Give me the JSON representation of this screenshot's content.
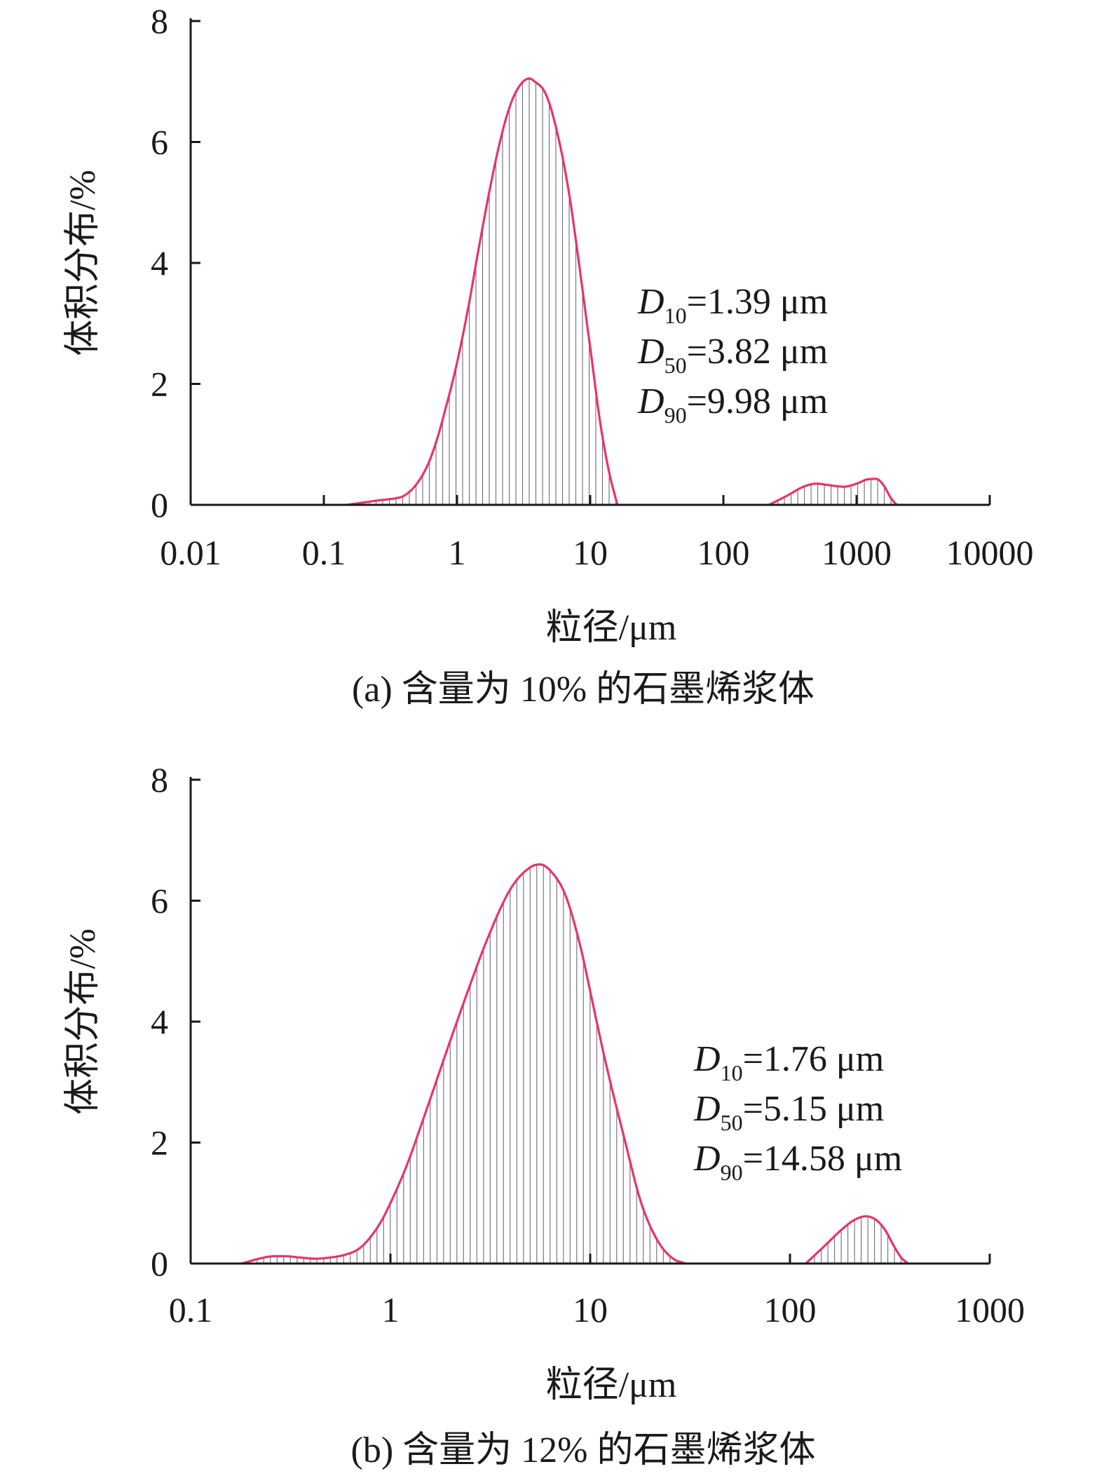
{
  "chart_data": [
    {
      "type": "area",
      "caption": "(a) 含量为 10% 的石墨烯浆体",
      "xlabel": "粒径/μm",
      "ylabel": "体积分布/%",
      "xscale": "log",
      "xlim": [
        0.01,
        10000
      ],
      "ylim": [
        0,
        8
      ],
      "x_ticks": [
        0.01,
        0.1,
        1,
        10,
        100,
        1000,
        10000
      ],
      "x_tick_labels": [
        "0.01",
        "0.1",
        "1",
        "10",
        "100",
        "1000",
        "10000"
      ],
      "y_ticks": [
        0,
        2,
        4,
        6,
        8
      ],
      "y_tick_labels": [
        "0",
        "2",
        "4",
        "6",
        "8"
      ],
      "grid": false,
      "line_color": "#e8336b",
      "hatch_color": "#555555",
      "stats": [
        {
          "symbol": "D",
          "sub": "10",
          "value": "=1.39 μm"
        },
        {
          "symbol": "D",
          "sub": "50",
          "value": "=3.82 μm"
        },
        {
          "symbol": "D",
          "sub": "90",
          "value": "=9.98 μm"
        }
      ],
      "series": [
        {
          "x": [
            0.15,
            0.2,
            0.25,
            0.3,
            0.35,
            0.4,
            0.5,
            0.6,
            0.7,
            0.8,
            1.0,
            1.2,
            1.5,
            2.0,
            2.5,
            3.0,
            3.5,
            3.82,
            4.5,
            5.0,
            6.0,
            7.0,
            8.0,
            10.0,
            12.0,
            14.0,
            16.0
          ],
          "y": [
            0.0,
            0.04,
            0.07,
            0.09,
            0.11,
            0.15,
            0.35,
            0.65,
            1.05,
            1.5,
            2.35,
            3.2,
            4.4,
            5.8,
            6.6,
            6.95,
            7.05,
            7.0,
            6.85,
            6.6,
            5.9,
            5.1,
            4.2,
            2.6,
            1.3,
            0.5,
            0.0
          ]
        },
        {
          "x": [
            220,
            300,
            400,
            500,
            600,
            800,
            1000,
            1200,
            1400,
            1600,
            1800,
            2000
          ],
          "y": [
            0.0,
            0.15,
            0.3,
            0.35,
            0.33,
            0.3,
            0.35,
            0.42,
            0.43,
            0.32,
            0.12,
            0.0
          ]
        }
      ]
    },
    {
      "type": "area",
      "caption": "(b) 含量为 12% 的石墨烯浆体",
      "xlabel": "粒径/μm",
      "ylabel": "体积分布/%",
      "xscale": "log",
      "xlim": [
        0.1,
        1000
      ],
      "ylim": [
        0,
        8
      ],
      "x_ticks": [
        0.1,
        1,
        10,
        100,
        1000
      ],
      "x_tick_labels": [
        "0.1",
        "1",
        "10",
        "100",
        "1000"
      ],
      "y_ticks": [
        0,
        2,
        4,
        6,
        8
      ],
      "y_tick_labels": [
        "0",
        "2",
        "4",
        "6",
        "8"
      ],
      "grid": false,
      "line_color": "#e8336b",
      "hatch_color": "#555555",
      "stats": [
        {
          "symbol": "D",
          "sub": "10",
          "value": "=1.76 μm"
        },
        {
          "symbol": "D",
          "sub": "50",
          "value": "=5.15 μm"
        },
        {
          "symbol": "D",
          "sub": "90",
          "value": "=14.58 μm"
        }
      ],
      "series": [
        {
          "x": [
            0.18,
            0.22,
            0.26,
            0.3,
            0.35,
            0.42,
            0.5,
            0.6,
            0.7,
            0.8,
            0.9,
            1.0,
            1.2,
            1.5,
            2.0,
            2.5,
            3.0,
            4.0,
            5.0,
            5.6,
            6.5,
            7.5,
            9.0,
            10.0,
            12.0,
            15.0,
            18.0,
            22.0,
            26.0,
            30.0
          ],
          "y": [
            0.0,
            0.08,
            0.12,
            0.12,
            0.1,
            0.08,
            0.1,
            0.15,
            0.25,
            0.45,
            0.7,
            1.0,
            1.6,
            2.5,
            3.7,
            4.6,
            5.3,
            6.2,
            6.55,
            6.6,
            6.45,
            6.1,
            5.2,
            4.5,
            3.3,
            2.0,
            1.0,
            0.35,
            0.08,
            0.0
          ]
        },
        {
          "x": [
            120,
            150,
            180,
            210,
            240,
            270,
            300,
            330,
            360,
            390
          ],
          "y": [
            0.0,
            0.3,
            0.55,
            0.72,
            0.78,
            0.72,
            0.55,
            0.3,
            0.1,
            0.0
          ]
        }
      ]
    }
  ]
}
